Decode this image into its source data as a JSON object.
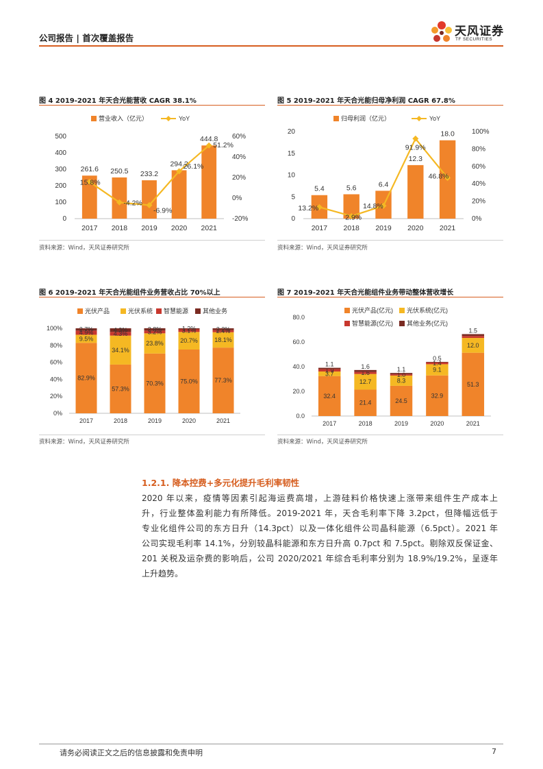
{
  "header": {
    "title": "公司报告 | 首次覆盖报告"
  },
  "logo": {
    "name": "天风证券",
    "sub": "TF SECURITIES"
  },
  "colors": {
    "orange": "#f0842a",
    "yellow": "#f5b823",
    "red": "#c8382e",
    "dark": "#7a2b22",
    "accent": "#d65d1e"
  },
  "figures": [
    {
      "title": "图 4 2019-2021 年天合光能营收 CAGR 38.1%",
      "source": "资料来源：Wind，天风证券研究所"
    },
    {
      "title": "图 5 2019-2021 年天合光能归母净利润 CAGR 67.8%",
      "source": "资料来源：Wind，天风证券研究所"
    },
    {
      "title": "图 6 2019-2021 年天合光能组件业务营收占比 70%以上",
      "source": "资料来源：Wind，天风证券研究所"
    },
    {
      "title": "图 7 2019-2021 年天合光能组件业务带动整体营收增长",
      "source": "资料来源：Wind，天风证券研究所"
    }
  ],
  "chart_data": [
    {
      "type": "bar",
      "categories": [
        "2017",
        "2018",
        "2019",
        "2020",
        "2021"
      ],
      "series": [
        {
          "name": "营业收入（亿元）",
          "values": [
            261.6,
            250.5,
            233.2,
            294.2,
            444.8
          ],
          "labels": [
            "261.6",
            "250.5",
            "233.2",
            "294.2",
            "444.8"
          ]
        },
        {
          "name": "YoY",
          "type": "line",
          "axis": "right",
          "values": [
            15.8,
            -4.2,
            -6.9,
            26.1,
            51.2
          ],
          "labels": [
            "15.8%",
            "-4.2%",
            "-6.9%",
            "26.1%",
            "51.2%"
          ]
        }
      ],
      "ylim": [
        0,
        500
      ],
      "yticks": [
        "0",
        "100",
        "200",
        "300",
        "400",
        "500"
      ],
      "y2lim": [
        -20,
        60
      ],
      "y2ticks": [
        "-20%",
        "0%",
        "20%",
        "40%",
        "60%"
      ]
    },
    {
      "type": "bar",
      "categories": [
        "2017",
        "2018",
        "2019",
        "2020",
        "2021"
      ],
      "series": [
        {
          "name": "归母利润（亿元）",
          "values": [
            5.4,
            5.6,
            6.4,
            12.3,
            18.0
          ],
          "labels": [
            "5.4",
            "5.6",
            "6.4",
            "12.3",
            "18.0"
          ]
        },
        {
          "name": "YoY",
          "type": "line",
          "axis": "right",
          "values": [
            13.2,
            2.9,
            14.8,
            91.9,
            46.8
          ],
          "labels": [
            "13.2%",
            "2.9%",
            "14.8%",
            "91.9%",
            "46.8%"
          ]
        }
      ],
      "ylim": [
        0,
        20
      ],
      "yticks": [
        "0",
        "5",
        "10",
        "15",
        "20"
      ],
      "y2lim": [
        0,
        100
      ],
      "y2ticks": [
        "0%",
        "20%",
        "40%",
        "60%",
        "80%",
        "100%"
      ]
    },
    {
      "type": "bar",
      "stacked": true,
      "categories": [
        "2017",
        "2018",
        "2019",
        "2020",
        "2021"
      ],
      "series": [
        {
          "name": "光伏产品",
          "values": [
            82.9,
            57.3,
            70.3,
            75.0,
            77.3
          ],
          "labels": [
            "82.9%",
            "57.3%",
            "70.3%",
            "75.0%",
            "77.3%"
          ]
        },
        {
          "name": "光伏系统",
          "values": [
            9.5,
            34.1,
            23.8,
            20.7,
            18.1
          ],
          "labels": [
            "9.5%",
            "34.1%",
            "23.8%",
            "20.7%",
            "18.1%"
          ]
        },
        {
          "name": "智慧能源",
          "values": [
            4.9,
            4.3,
            3.2,
            3.1,
            2.4
          ],
          "labels": [
            "4.9%",
            "4.3%",
            "3.2%",
            "3.1%",
            "2.4%"
          ]
        },
        {
          "name": "其他业务",
          "values": [
            2.7,
            4.3,
            2.8,
            1.2,
            2.2
          ],
          "labels": [
            "2.7%",
            "4.3%",
            "2.8%",
            "1.2%",
            "2.2%"
          ]
        }
      ],
      "ylim": [
        0,
        100
      ],
      "yticks": [
        "0%",
        "20%",
        "40%",
        "60%",
        "80%",
        "100%"
      ]
    },
    {
      "type": "bar",
      "stacked": true,
      "categories": [
        "2017",
        "2018",
        "2019",
        "2020",
        "2021"
      ],
      "series": [
        {
          "name": "光伏产品(亿元)",
          "values": [
            32.4,
            21.4,
            24.5,
            32.9,
            51.3
          ],
          "labels": [
            "32.4",
            "21.4",
            "24.5",
            "32.9",
            "51.3"
          ]
        },
        {
          "name": "光伏系统(亿元)",
          "values": [
            3.7,
            12.7,
            8.3,
            9.1,
            12.0
          ],
          "labels": [
            "3.7",
            "12.7",
            "8.3",
            "9.1",
            "12.0"
          ]
        },
        {
          "name": "智慧能源(亿元)",
          "values": [
            1.9,
            1.6,
            1.0,
            1.4,
            1.6
          ],
          "labels": [
            "1.9",
            "1.6",
            "1.0",
            "1.4",
            ""
          ]
        },
        {
          "name": "其他业务(亿元)",
          "values": [
            1.1,
            1.6,
            1.1,
            0.5,
            1.5
          ],
          "labels": [
            "1.1",
            "1.6",
            "1.1",
            "0.5",
            "1.5"
          ]
        }
      ],
      "ylim": [
        0,
        80
      ],
      "yticks": [
        "0.0",
        "20.0",
        "40.0",
        "60.0",
        "80.0"
      ]
    }
  ],
  "section": {
    "title": "1.2.1. 降本控费+多元化提升毛利率韧性"
  },
  "paragraph": [
    "2020 年以来，疫情等因素引起海运费高增，上游硅料价格快速上涨带来组件生产成本上",
    "升，行业整体盈利能力有所降低。2019-2021 年，天合毛利率下降 3.2pct，但降幅远低于",
    "专业化组件公司的东方日升（14.3pct）以及一体化组件公司晶科能源（6.5pct）。2021 年",
    "公司实现毛利率 14.1%，分别较晶科能源和东方日升高 0.7pct 和 7.5pct。剔除双反保证金、",
    "201 关税及运杂费的影响后，公司 2020/2021 年综合毛利率分别为 18.9%/19.2%，呈逐年",
    "上升趋势。"
  ],
  "footer": {
    "disclaimer": "请务必阅读正文之后的信息披露和免责申明",
    "page": "7"
  }
}
